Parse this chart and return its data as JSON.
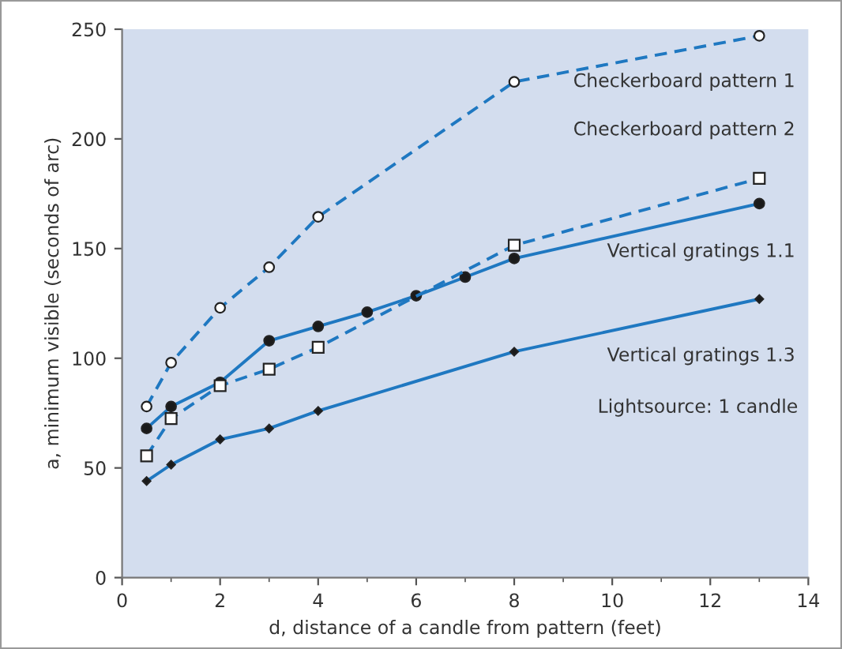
{
  "chart_data": {
    "type": "line",
    "xlabel": "d, distance of a candle from pattern (feet)",
    "ylabel": "a, minimum visible (seconds of arc)",
    "xlim": [
      0,
      14
    ],
    "xticks": [
      0,
      2,
      4,
      6,
      8,
      10,
      12,
      14
    ],
    "ylim": [
      0,
      250
    ],
    "yticks": [
      0,
      50,
      100,
      150,
      200,
      250
    ],
    "grid": false,
    "legend": false,
    "annotations": [
      "Lightsource: 1 candle"
    ],
    "series": [
      {
        "name": "Checkerboard pattern 1",
        "color": "#1f78c1",
        "line_style": "dashed",
        "marker": "circle",
        "x": [
          0.5,
          1,
          2,
          3,
          4,
          8,
          13
        ],
        "values": [
          78,
          98,
          123,
          141.5,
          164.5,
          226,
          247
        ]
      },
      {
        "name": "Checkerboard pattern 2",
        "color": "#1f78c1",
        "line_style": "dashed",
        "marker": "square",
        "x": [
          0.5,
          1,
          2,
          3,
          4,
          8,
          13
        ],
        "values": [
          55.5,
          72.5,
          87.5,
          95,
          105,
          151.5,
          182
        ]
      },
      {
        "name": "Vertical gratings 1.1",
        "color": "#1f78c1",
        "line_style": "solid",
        "marker": "circle",
        "x": [
          0.5,
          1,
          2,
          3,
          4,
          5,
          6,
          7,
          8,
          13
        ],
        "values": [
          68,
          78,
          89,
          108,
          114.5,
          121,
          128.5,
          137,
          145.5,
          170.5
        ]
      },
      {
        "name": "Vertical gratings 1.3",
        "color": "#1f78c1",
        "line_style": "solid",
        "marker": "diamond",
        "x": [
          0.5,
          1,
          2,
          3,
          4,
          8,
          13
        ],
        "values": [
          44,
          51.5,
          63,
          68,
          76,
          103,
          127
        ]
      }
    ]
  }
}
